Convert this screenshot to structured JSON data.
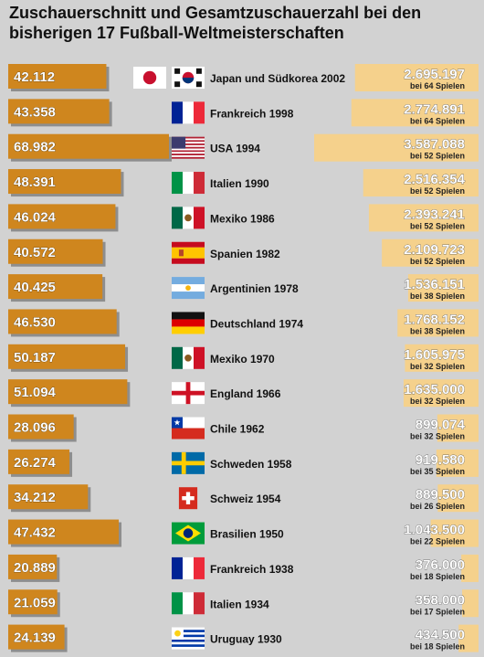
{
  "chart_data": {
    "type": "bar",
    "title": "Zuschauerschnitt und Gesamtzuschauerzahl bei den bisherigen 17 Fußball-Weltmeisterschaften",
    "categories": [
      "Japan und Südkorea 2002",
      "Frankreich 1998",
      "USA 1994",
      "Italien 1990",
      "Mexiko 1986",
      "Spanien 1982",
      "Argentinien 1978",
      "Deutschland 1974",
      "Mexiko 1970",
      "England 1966",
      "Chile 1962",
      "Schweden 1958",
      "Schweiz 1954",
      "Brasilien 1950",
      "Frankreich 1938",
      "Italien 1934",
      "Uruguay 1930"
    ],
    "series": [
      {
        "values": [
          42112,
          43358,
          68982,
          48391,
          46024,
          40572,
          40425,
          46530,
          50187,
          51094,
          28096,
          26274,
          34212,
          47432,
          20889,
          21059,
          24139
        ],
        "labels": [
          "42.112",
          "43.358",
          "68.982",
          "48.391",
          "46.024",
          "40.572",
          "40.425",
          "46.530",
          "50.187",
          "51.094",
          "28.096",
          "26.274",
          "34.212",
          "47.432",
          "20.889",
          "21.059",
          "24.139"
        ]
      },
      {
        "values": [
          2695197,
          2774891,
          3587088,
          2516354,
          2393241,
          2109723,
          1536151,
          1768152,
          1605975,
          1635000,
          899074,
          919580,
          889500,
          1043500,
          376000,
          358000,
          434500
        ],
        "labels": [
          "2.695.197",
          "2.774.891",
          "3.587.088",
          "2.516.354",
          "2.393.241",
          "2.109.723",
          "1.536.151",
          "1.768.152",
          "1.605.975",
          "1.635.000",
          "899.074",
          "919.580",
          "889.500",
          "1.043.500",
          "376.000",
          "358.000",
          "434.500"
        ]
      }
    ],
    "games": [
      "bei 64 Spielen",
      "bei 64 Spielen",
      "bei 52 Spielen",
      "bei 52 Spielen",
      "bei 52 Spielen",
      "bei 52 Spielen",
      "bei 38 Spielen",
      "bei 38 Spielen",
      "bei 32 Spielen",
      "bei 32 Spielen",
      "bei 32 Spielen",
      "bei 35 Spielen",
      "bei 26 Spielen",
      "bei 22 Spielen",
      "bei 18 Spielen",
      "bei 17 Spielen",
      "bei 18 Spielen"
    ],
    "flags": [
      [
        "japan-flag",
        "south-korea-flag"
      ],
      [
        "france-flag"
      ],
      [
        "usa-flag"
      ],
      [
        "italy-flag"
      ],
      [
        "mexico-flag"
      ],
      [
        "spain-flag"
      ],
      [
        "argentina-flag"
      ],
      [
        "germany-flag"
      ],
      [
        "mexico-flag"
      ],
      [
        "england-flag"
      ],
      [
        "chile-flag"
      ],
      [
        "sweden-flag"
      ],
      [
        "switzerland-flag"
      ],
      [
        "brazil-flag"
      ],
      [
        "france-flag"
      ],
      [
        "italy-flag"
      ],
      [
        "uruguay-flag"
      ]
    ],
    "colors": {
      "average_bar": "#cf861e",
      "total_bar": "#f5d18c",
      "background": "#d2d2d2"
    }
  }
}
